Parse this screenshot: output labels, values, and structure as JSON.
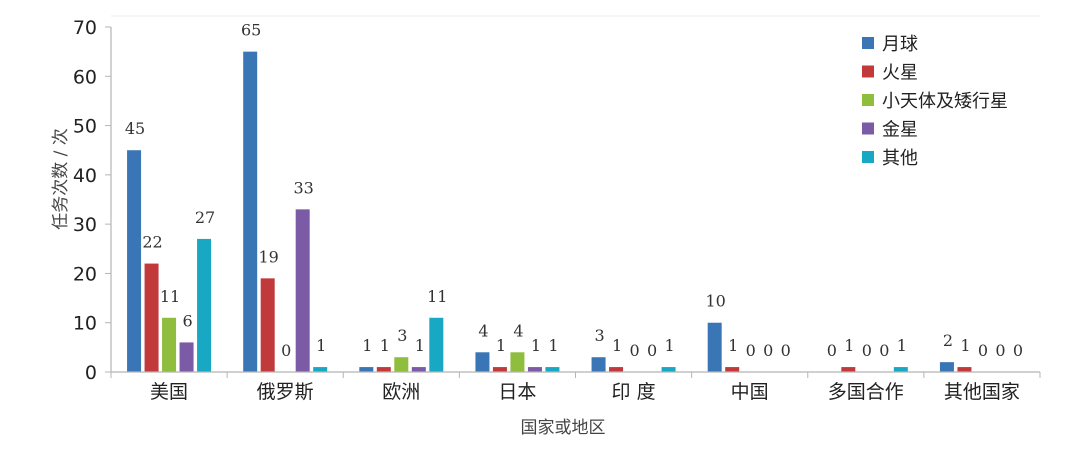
{
  "chart_data": {
    "type": "bar",
    "xlabel": "国家或地区",
    "ylabel": "任务次数 / 次",
    "ylim": [
      0,
      70
    ],
    "yticks": [
      0,
      10,
      20,
      30,
      40,
      50,
      60,
      70
    ],
    "grid": false,
    "legend_position": "top-right",
    "categories": [
      "美国",
      "俄罗斯",
      "欧洲",
      "日本",
      "印 度",
      "中国",
      "多国合作",
      "其他国家"
    ],
    "series": [
      {
        "name": "月球",
        "color": "#3a76b6",
        "values": [
          45,
          65,
          1,
          4,
          3,
          10,
          0,
          2
        ]
      },
      {
        "name": "火星",
        "color": "#c2393c",
        "values": [
          22,
          19,
          1,
          1,
          1,
          1,
          1,
          1
        ]
      },
      {
        "name": "小天体及矮行星",
        "color": "#8fbd3d",
        "values": [
          11,
          0,
          3,
          4,
          0,
          0,
          0,
          0
        ]
      },
      {
        "name": "金星",
        "color": "#7b5aa6",
        "values": [
          6,
          33,
          1,
          1,
          0,
          0,
          0,
          0
        ]
      },
      {
        "name": "其他",
        "color": "#18a8c4",
        "values": [
          27,
          1,
          11,
          1,
          1,
          0,
          1,
          0
        ]
      }
    ]
  }
}
